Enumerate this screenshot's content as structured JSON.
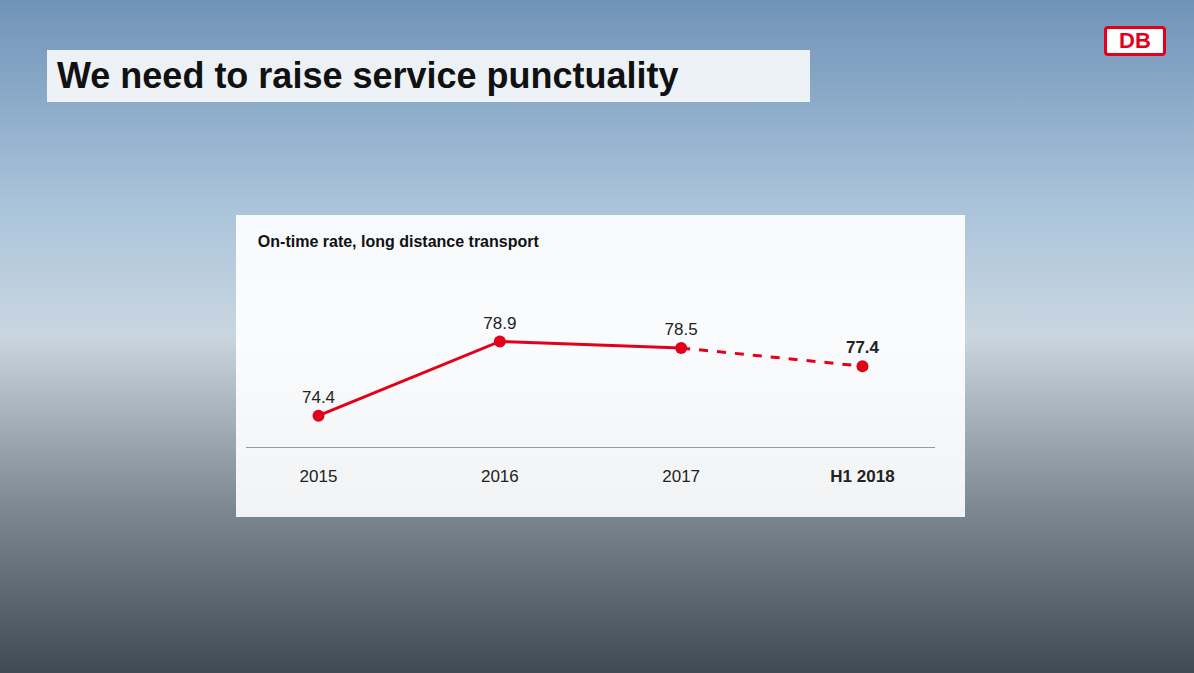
{
  "logo": "DB",
  "title": "We need to raise service punctuality",
  "chart_data": {
    "type": "line",
    "title": "On-time rate, long distance transport",
    "categories": [
      "2015",
      "2016",
      "2017",
      "H1 2018"
    ],
    "series": [
      {
        "values": [
          74.4,
          78.9,
          78.5,
          null
        ],
        "color": "#e3001b",
        "line_style": "solid",
        "marker": "circle"
      },
      {
        "values": [
          null,
          null,
          null,
          77.4
        ],
        "color": "#e3001b",
        "line_style": "dashed",
        "marker": "circle"
      }
    ],
    "ylim": [
      72.5,
      80.5
    ],
    "data_labels": true,
    "tick_labels": "x",
    "grid": false
  }
}
